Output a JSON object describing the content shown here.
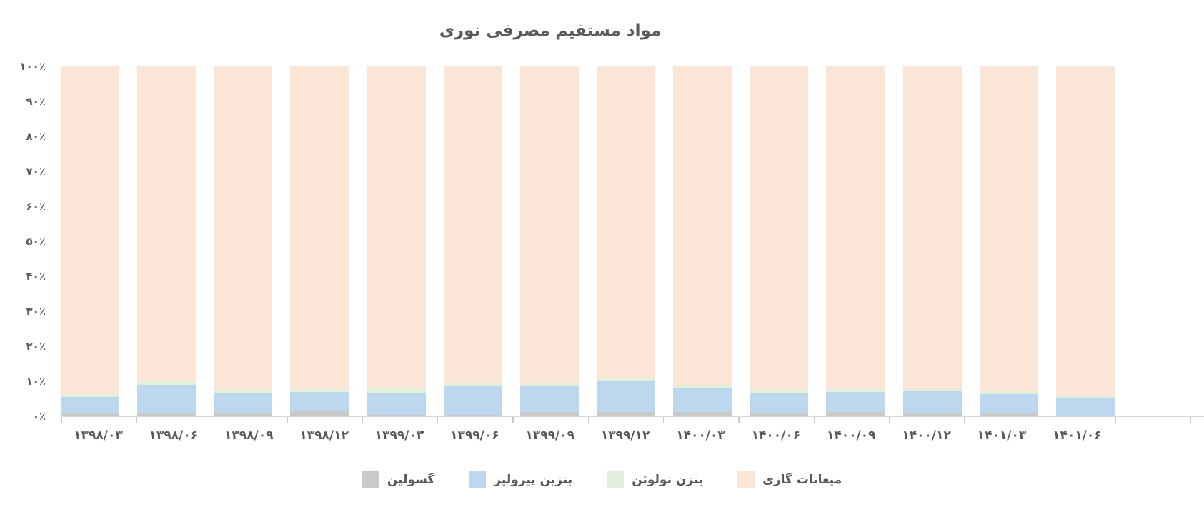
{
  "title": "مواد مستقیم مصرفی نوری",
  "colors": {
    "text": "#595959",
    "axis_line": "#d9d9d9",
    "tick": "#c9c9c9",
    "series_gray": "#c9c9c9",
    "series_blue": "#bdd7ee",
    "series_green": "#e2efda",
    "series_peach": "#fbe5d6"
  },
  "chart_data": {
    "type": "bar",
    "stacking": "percent",
    "rtl": true,
    "grid": false,
    "title": "مواد مستقیم مصرفی نوری",
    "xlabel": "",
    "ylabel": "",
    "ylim": [
      0,
      100
    ],
    "categories": [
      "۱۳۹۸/۰۳",
      "۱۳۹۸/۰۶",
      "۱۳۹۸/۰۹",
      "۱۳۹۸/۱۲",
      "۱۳۹۹/۰۳",
      "۱۳۹۹/۰۶",
      "۱۳۹۹/۰۹",
      "۱۳۹۹/۱۲",
      "۱۴۰۰/۰۳",
      "۱۴۰۰/۰۶",
      "۱۴۰۰/۰۹",
      "۱۴۰۰/۱۲",
      "۱۴۰۱/۰۳",
      "۱۴۰۱/۰۶"
    ],
    "series": [
      {
        "name": "گسولین",
        "color": "#c9c9c9",
        "values": [
          0.8,
          1.0,
          0.8,
          1.5,
          0.5,
          0.5,
          1.2,
          1.3,
          1.2,
          1.0,
          1.2,
          1.0,
          0.8,
          0.3
        ]
      },
      {
        "name": "بنزین پیرولیز",
        "color": "#bdd7ee",
        "values": [
          4.7,
          8.0,
          6.0,
          5.5,
          6.2,
          8.0,
          7.3,
          8.7,
          7.0,
          5.5,
          5.8,
          6.2,
          5.5,
          4.8
        ]
      },
      {
        "name": "بنزن تولوئن",
        "color": "#e2efda",
        "values": [
          0.8,
          1.0,
          0.8,
          0.7,
          1.3,
          1.0,
          0.8,
          1.0,
          0.8,
          1.0,
          0.7,
          0.5,
          0.8,
          0.9
        ]
      },
      {
        "name": "میعانات گازی",
        "color": "#fbe5d6",
        "values": [
          93.7,
          90.0,
          92.4,
          92.3,
          92.0,
          90.5,
          90.7,
          89.0,
          91.0,
          92.5,
          92.3,
          92.3,
          92.9,
          94.0
        ]
      }
    ],
    "y_ticks": {
      "values": [
        100,
        90,
        80,
        70,
        60,
        50,
        40,
        30,
        20,
        10,
        0
      ],
      "labels": [
        "۱۰۰٪",
        "۹۰٪",
        "۸۰٪",
        "۷۰٪",
        "۶۰٪",
        "۵۰٪",
        "۴۰٪",
        "۳۰٪",
        "۲۰٪",
        "۱۰٪",
        "۰٪"
      ]
    },
    "legend_position": "bottom"
  },
  "legend": {
    "items": [
      {
        "label": "گسولین",
        "color": "#c9c9c9"
      },
      {
        "label": "بنزین پیرولیز",
        "color": "#bdd7ee"
      },
      {
        "label": "بنزن تولوئن",
        "color": "#e2efda"
      },
      {
        "label": "میعانات گازی",
        "color": "#fbe5d6"
      }
    ]
  }
}
